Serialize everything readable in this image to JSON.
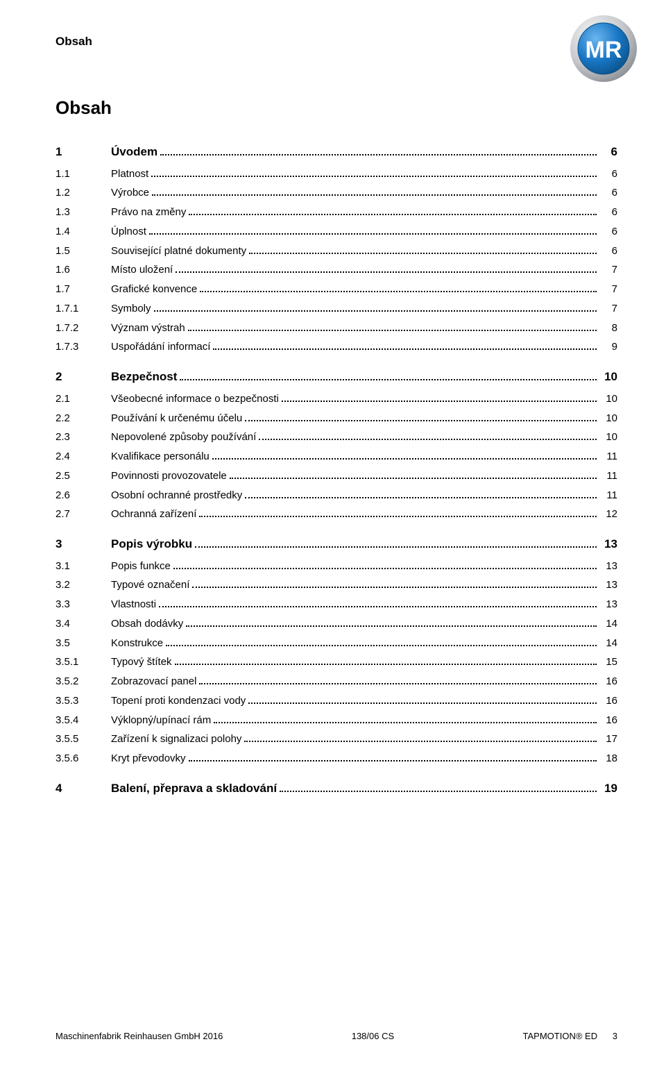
{
  "runningHead": "Obsah",
  "title": "Obsah",
  "logo": {
    "text": "MR",
    "outerRing": "#c8cace",
    "innerFill": "#1976c4",
    "innerStroke": "#0a4f85",
    "textColor": "#ffffff"
  },
  "toc": [
    {
      "level": 0,
      "num": "1",
      "title": "Úvodem",
      "page": "6"
    },
    {
      "level": 1,
      "num": "1.1",
      "title": "Platnost",
      "page": "6"
    },
    {
      "level": 1,
      "num": "1.2",
      "title": "Výrobce",
      "page": "6"
    },
    {
      "level": 1,
      "num": "1.3",
      "title": "Právo na změny",
      "page": "6"
    },
    {
      "level": 1,
      "num": "1.4",
      "title": "Úplnost",
      "page": "6"
    },
    {
      "level": 1,
      "num": "1.5",
      "title": "Související platné dokumenty",
      "page": "6"
    },
    {
      "level": 1,
      "num": "1.6",
      "title": "Místo uložení",
      "page": "7"
    },
    {
      "level": 1,
      "num": "1.7",
      "title": "Grafické konvence",
      "page": "7"
    },
    {
      "level": 2,
      "num": "1.7.1",
      "title": "Symboly",
      "page": "7"
    },
    {
      "level": 2,
      "num": "1.7.2",
      "title": "Význam výstrah",
      "page": "8"
    },
    {
      "level": 2,
      "num": "1.7.3",
      "title": "Uspořádání informací",
      "page": "9"
    },
    {
      "level": 0,
      "num": "2",
      "title": "Bezpečnost",
      "page": "10"
    },
    {
      "level": 1,
      "num": "2.1",
      "title": "Všeobecné informace o bezpečnosti",
      "page": "10"
    },
    {
      "level": 1,
      "num": "2.2",
      "title": "Používání k určenému účelu",
      "page": "10"
    },
    {
      "level": 1,
      "num": "2.3",
      "title": "Nepovolené způsoby používání",
      "page": "10"
    },
    {
      "level": 1,
      "num": "2.4",
      "title": "Kvalifikace personálu",
      "page": "11"
    },
    {
      "level": 1,
      "num": "2.5",
      "title": "Povinnosti provozovatele",
      "page": "11"
    },
    {
      "level": 1,
      "num": "2.6",
      "title": "Osobní ochranné prostředky",
      "page": "11"
    },
    {
      "level": 1,
      "num": "2.7",
      "title": "Ochranná zařízení",
      "page": "12"
    },
    {
      "level": 0,
      "num": "3",
      "title": "Popis výrobku",
      "page": "13"
    },
    {
      "level": 1,
      "num": "3.1",
      "title": "Popis funkce",
      "page": "13"
    },
    {
      "level": 1,
      "num": "3.2",
      "title": "Typové označení",
      "page": "13"
    },
    {
      "level": 1,
      "num": "3.3",
      "title": "Vlastnosti",
      "page": "13"
    },
    {
      "level": 1,
      "num": "3.4",
      "title": "Obsah dodávky",
      "page": "14"
    },
    {
      "level": 1,
      "num": "3.5",
      "title": "Konstrukce",
      "page": "14"
    },
    {
      "level": 2,
      "num": "3.5.1",
      "title": "Typový štítek",
      "page": "15"
    },
    {
      "level": 2,
      "num": "3.5.2",
      "title": "Zobrazovací panel",
      "page": "16"
    },
    {
      "level": 2,
      "num": "3.5.3",
      "title": "Topení proti kondenzaci vody",
      "page": "16"
    },
    {
      "level": 2,
      "num": "3.5.4",
      "title": "Výklopný/upínací rám",
      "page": "16"
    },
    {
      "level": 2,
      "num": "3.5.5",
      "title": "Zařízení k signalizaci polohy",
      "page": "17"
    },
    {
      "level": 2,
      "num": "3.5.6",
      "title": "Kryt převodovky",
      "page": "18"
    },
    {
      "level": 0,
      "num": "4",
      "title": "Balení, přeprava a skladování",
      "page": "19"
    }
  ],
  "footer": {
    "left": "Maschinenfabrik Reinhausen GmbH 2016",
    "center": "138/06 CS",
    "rightProduct": "TAPMOTION® ED",
    "rightPage": "3"
  }
}
